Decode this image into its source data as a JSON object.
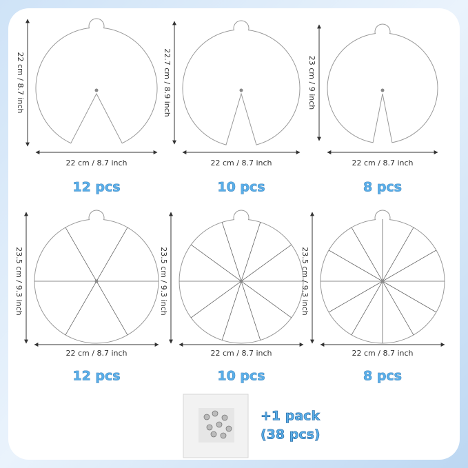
{
  "top_row": [
    {
      "height": "22 cm /  8.7 inch",
      "width": "22 cm /  8.7 inch",
      "count": "12 pcs"
    },
    {
      "height": "22.7 cm / 8.9 inch",
      "width": "22 cm /  8.7 inch",
      "count": "10 pcs"
    },
    {
      "height": "23 cm / 9 inch",
      "width": "22 cm /  8.7 inch",
      "count": "8 pcs"
    }
  ],
  "bottom_row": [
    {
      "height": "23.5 cm / 9.3 inch",
      "width": "22 cm /  8.7 inch",
      "count": "12 pcs"
    },
    {
      "height": "23.5 cm / 9.3 inch",
      "width": "22 cm /  8.7 inch",
      "count": "10 pcs"
    },
    {
      "height": "23.5 cm / 9.3 inch",
      "width": "22 cm /  8.7 inch",
      "count": "8 pcs"
    }
  ],
  "pack": {
    "line1": "+1 pack",
    "line2": "(38 pcs)"
  }
}
